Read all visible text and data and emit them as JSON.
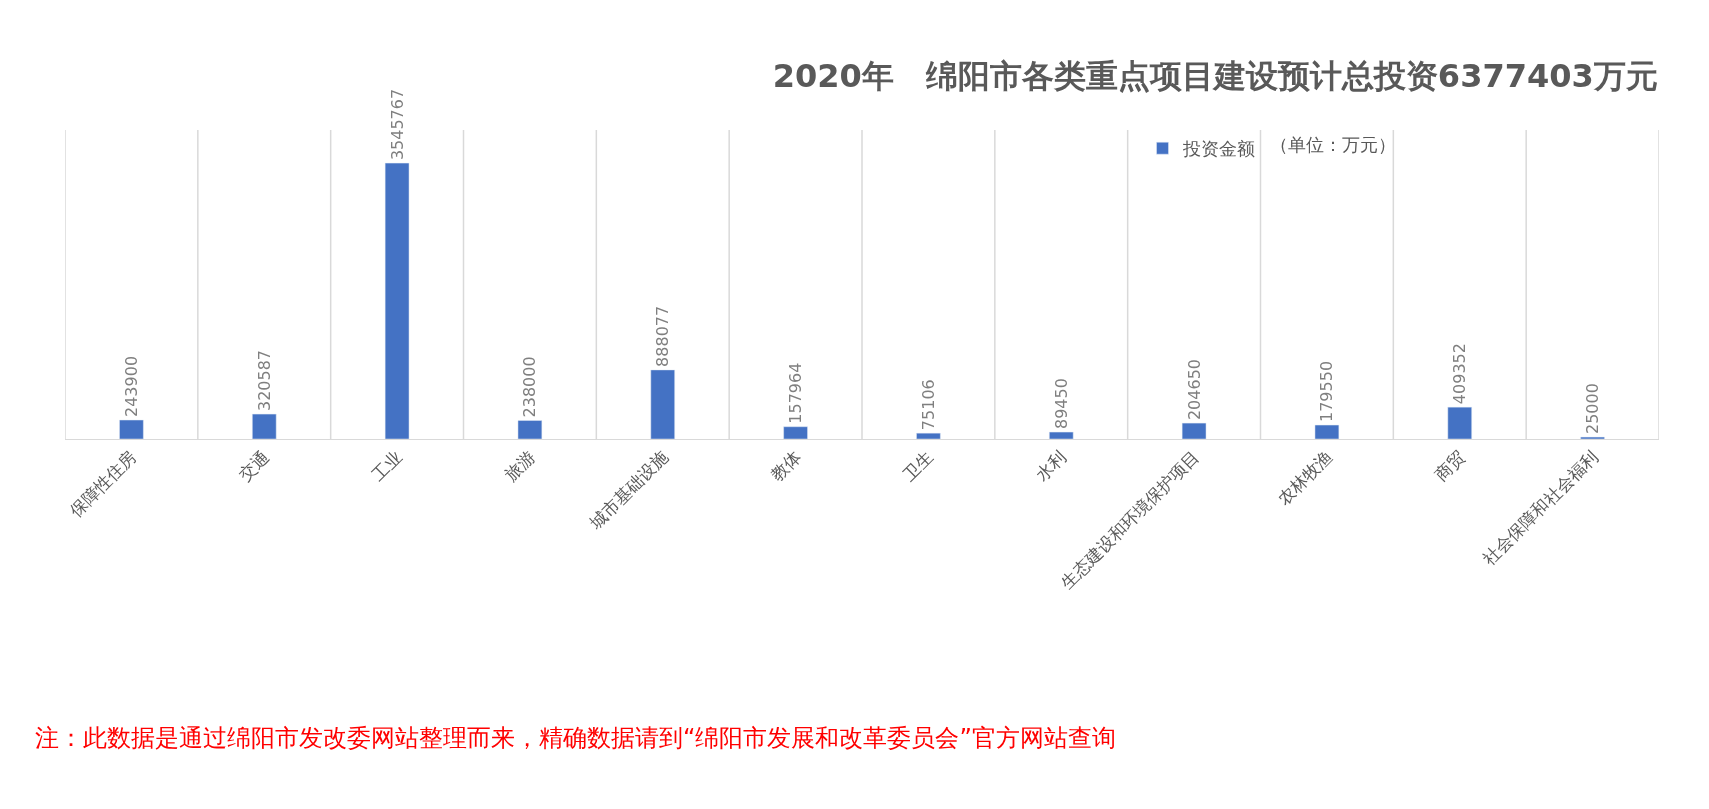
{
  "chart_data": {
    "type": "bar",
    "title": "2020年　绵阳市各类重点项目建设预计总投资6377403万元",
    "categories": [
      "保障性住房",
      "交通",
      "工业",
      "旅游",
      "城市基础设施",
      "教体",
      "卫生",
      "水利",
      "生态建设和环境保护项目",
      "农林牧渔",
      "商贸",
      "社会保障和社会福利"
    ],
    "series": [
      {
        "name": "投资金额",
        "color": "#4472c4",
        "values": [
          243900,
          320587,
          3545767,
          238000,
          888077,
          157964,
          75106,
          89450,
          204650,
          179550,
          409352,
          25000
        ]
      }
    ],
    "data_labels": true,
    "grid": "x",
    "legend": "top right",
    "tick_labels": "x",
    "annotations": [
      "（单位：万元）",
      "注：此数据是通过绵阳市发改委网站整理而来，精确数据请到“绵阳市发展和改革委员会”官方网站查询"
    ]
  }
}
